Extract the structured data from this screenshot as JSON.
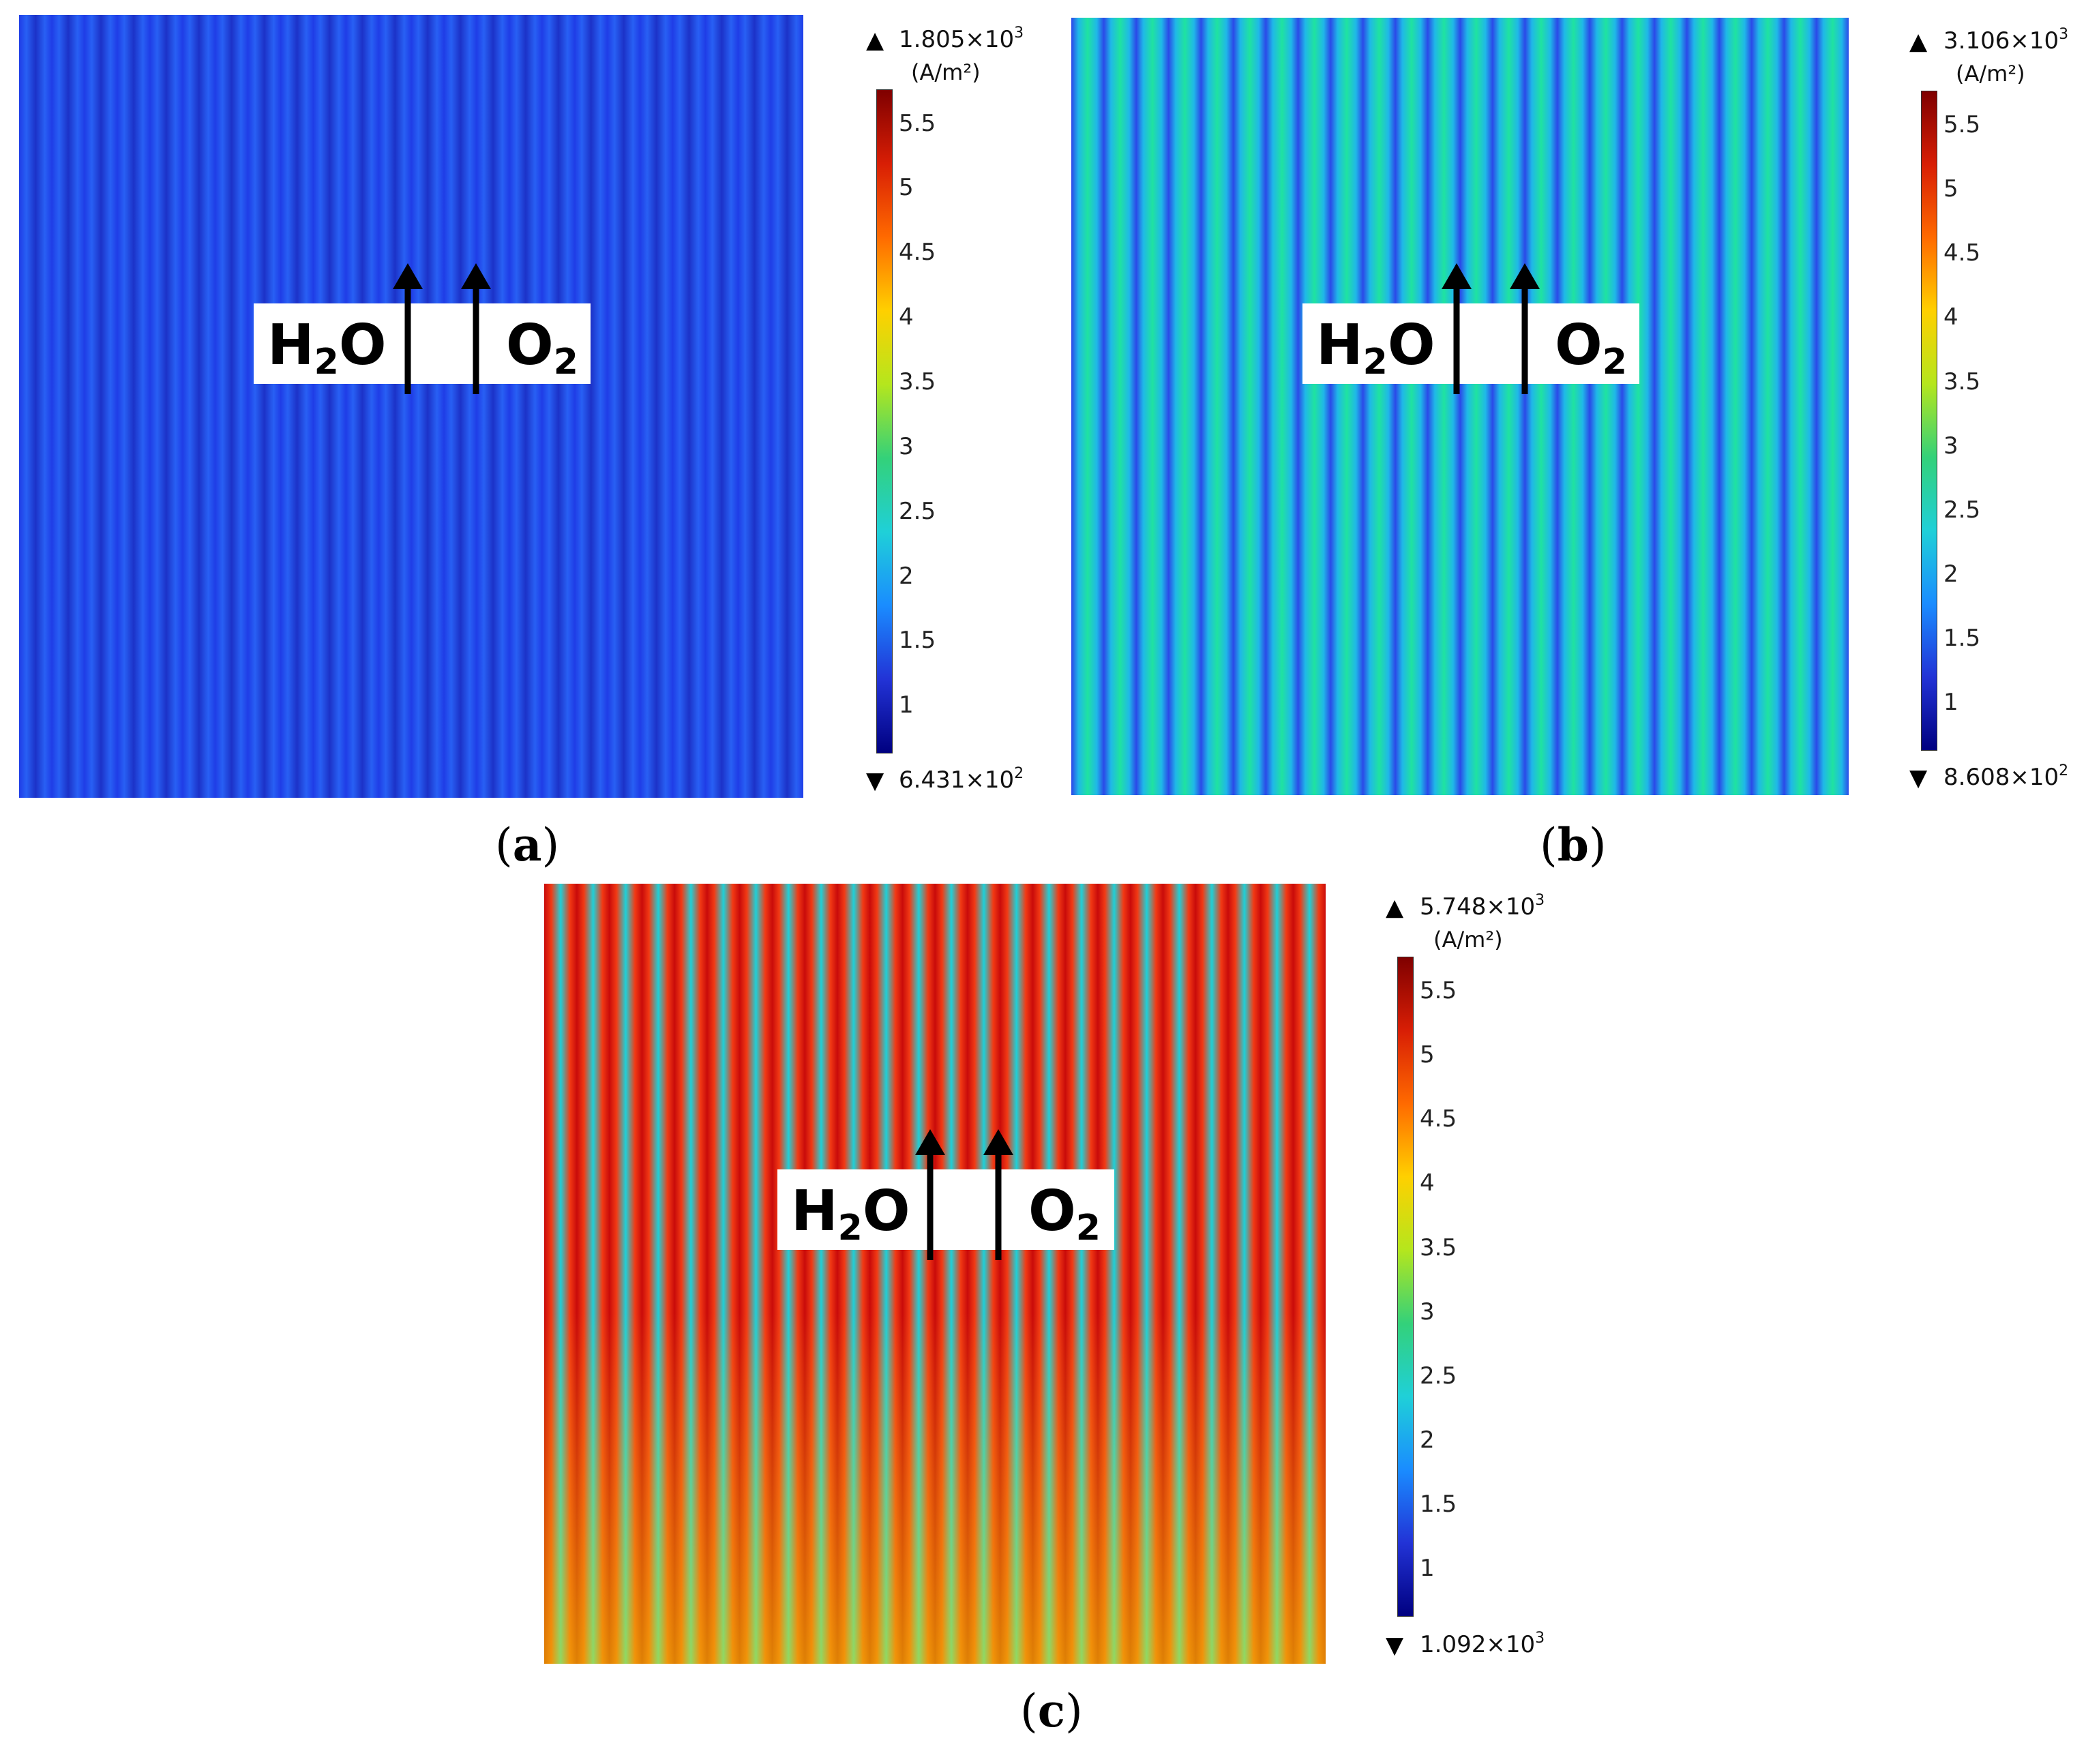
{
  "chart_data": [
    {
      "type": "heatmap",
      "panel": "a",
      "caption_letter": "a",
      "colormap": "rainbow",
      "stripe_count": 24,
      "stripe_colors": [
        "#1f3ce6",
        "#2860f4",
        "#1c32c8"
      ],
      "unit": "(A/m²)",
      "max_label": {
        "mantissa": "1.805×10",
        "exp": "3"
      },
      "min_label": {
        "mantissa": "6.431×10",
        "exp": "2"
      },
      "max_value": 1805,
      "min_value": 643.1,
      "label_left": {
        "main": "H",
        "sub": "2",
        "tail": "O"
      },
      "label_right": {
        "main": "O",
        "sub": "2"
      }
    },
    {
      "type": "heatmap",
      "panel": "b",
      "caption_letter": "b",
      "colormap": "rainbow",
      "stripe_count": 24,
      "stripe_colors": [
        "#2b47e8",
        "#1fb8e8",
        "#1fe3a0"
      ],
      "unit": "(A/m²)",
      "max_label": {
        "mantissa": "3.106×10",
        "exp": "3"
      },
      "min_label": {
        "mantissa": "8.608×10",
        "exp": "2"
      },
      "max_value": 3106,
      "min_value": 860.8,
      "label_left": {
        "main": "H",
        "sub": "2",
        "tail": "O"
      },
      "label_right": {
        "main": "O",
        "sub": "2"
      }
    },
    {
      "type": "heatmap",
      "panel": "c",
      "caption_letter": "c",
      "colormap": "rainbow",
      "stripe_count": 24,
      "stripe_colors": [
        "#c80a0a",
        "#f23a14",
        "#1fd0d8"
      ],
      "unit": "(A/m²)",
      "max_label": {
        "mantissa": "5.748×10",
        "exp": "3"
      },
      "min_label": {
        "mantissa": "1.092×10",
        "exp": "3"
      },
      "max_value": 5748,
      "min_value": 1092,
      "label_left": {
        "main": "H",
        "sub": "2",
        "tail": "O"
      },
      "label_right": {
        "main": "O",
        "sub": "2"
      }
    }
  ],
  "colorbar": {
    "ticks": [
      "5.5",
      "5",
      "4.5",
      "4",
      "3.5",
      "3",
      "2.5",
      "2",
      "1.5",
      "1"
    ],
    "tick_values": [
      5.5,
      5,
      4.5,
      4,
      3.5,
      3,
      2.5,
      2,
      1.5,
      1
    ],
    "scale_min": 0.6431,
    "scale_max": 5.748,
    "colors": [
      "#7f0000",
      "#d81e05",
      "#ff6a00",
      "#ffd000",
      "#b5e61d",
      "#33d17a",
      "#1fd0d8",
      "#1a8cff",
      "#2233d6",
      "#000080"
    ]
  },
  "symbols": {
    "up": "▲",
    "down": "▼",
    "paren_open": "(",
    "paren_close": ")"
  }
}
